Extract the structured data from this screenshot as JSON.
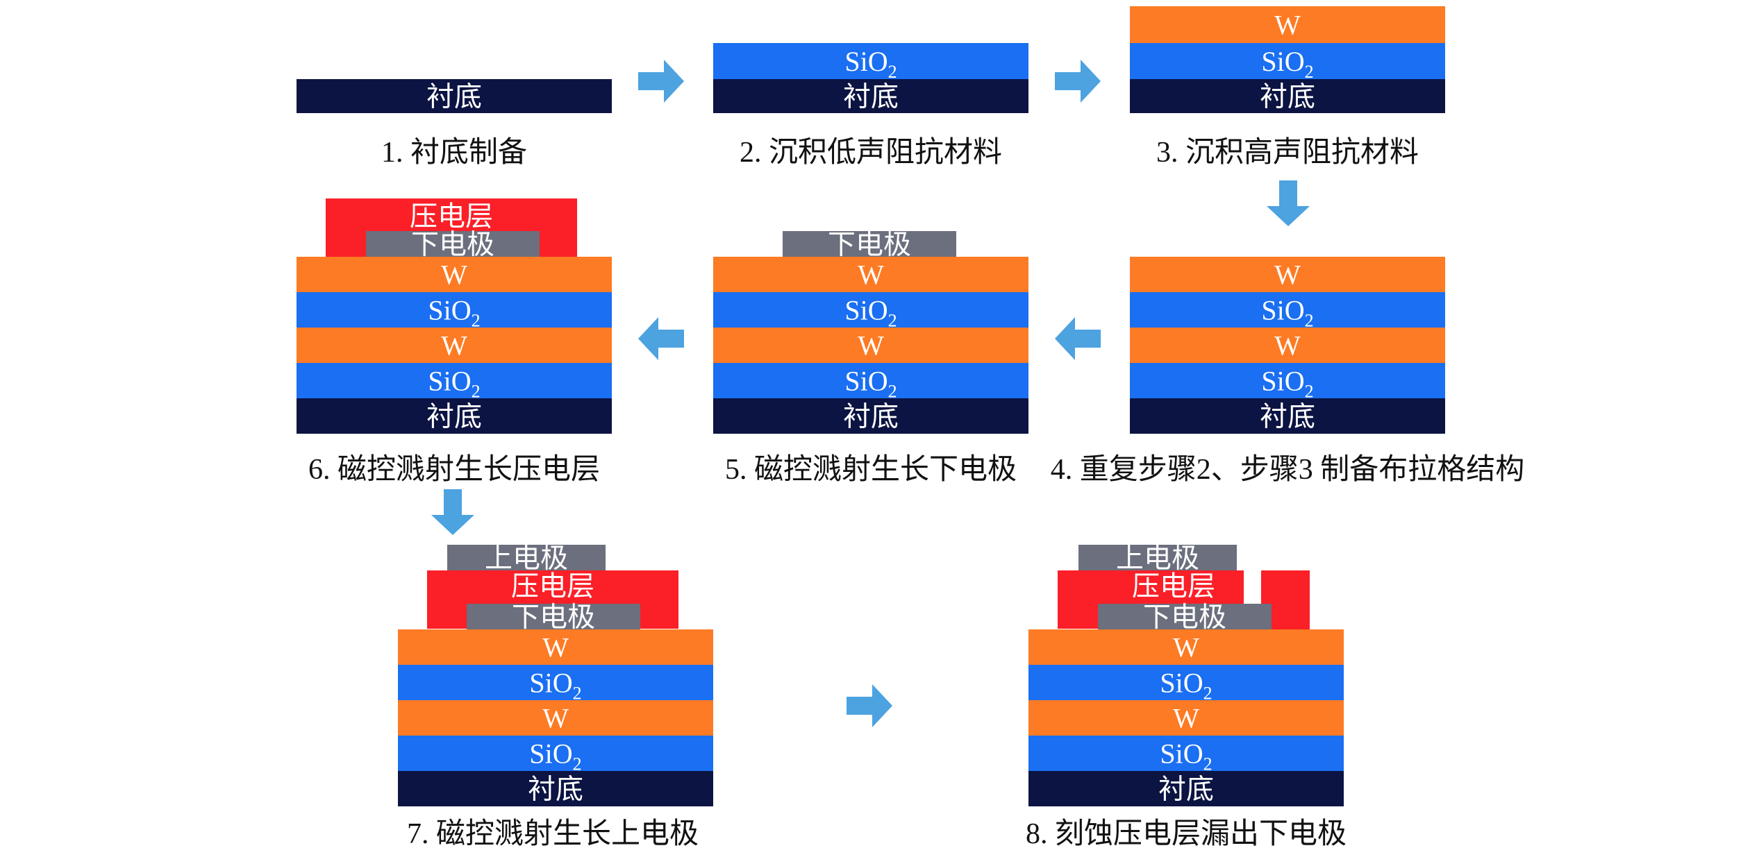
{
  "labels": {
    "substrate": "衬底",
    "sio2": "SiO",
    "sio2_sub": "2",
    "w": "W",
    "bottom_electrode": "下电极",
    "piezo": "压电层",
    "top_electrode": "上电极"
  },
  "steps": [
    {
      "caption": "1. 衬底制备"
    },
    {
      "caption": "2. 沉积低声阻抗材料"
    },
    {
      "caption": "3. 沉积高声阻抗材料"
    },
    {
      "caption": "4. 重复步骤2、步骤3 制备布拉格结构"
    },
    {
      "caption": "5. 磁控溅射生长下电极"
    },
    {
      "caption": "6. 磁控溅射生长压电层"
    },
    {
      "caption": "7. 磁控溅射生长上电极"
    },
    {
      "caption": "8. 刻蚀压电层漏出下电极"
    }
  ],
  "colors": {
    "substrate": "#0b1442",
    "sio2": "#1a6ff2",
    "w": "#fd7b24",
    "electrode": "#6c6f7d",
    "piezo": "#fb1f28",
    "arrow": "#4da2e0"
  }
}
